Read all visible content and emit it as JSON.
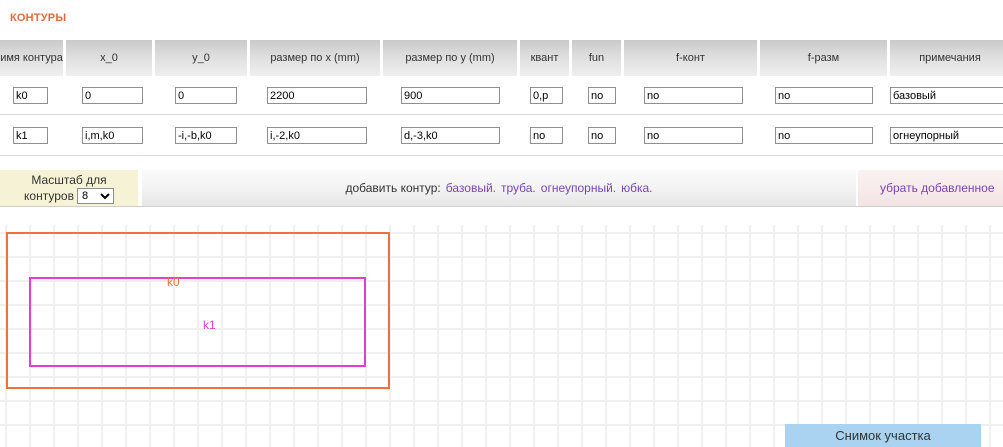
{
  "title": "КОНТУРЫ",
  "table": {
    "headers": [
      "имя контура",
      "x_0",
      "y_0",
      "размер по x (mm)",
      "размер по y (mm)",
      "квант",
      "fun",
      "f-конт",
      "f-разм",
      "примечания"
    ],
    "rows": [
      {
        "values": [
          "k0",
          "0",
          "0",
          "2200",
          "900",
          "0,p",
          "no",
          "no",
          "no",
          "базовый"
        ]
      },
      {
        "values": [
          "k1",
          "i,m,k0",
          "-i,-b,k0",
          "i,-2,k0",
          "d,-3,k0",
          "no",
          "no",
          "no",
          "no",
          "огнеупорный"
        ]
      }
    ]
  },
  "toolbar": {
    "scale_label_line1": "Масштаб для",
    "scale_label_line2": "контуров",
    "scale_value": "8",
    "add_label": "добавить контур:",
    "add_links": [
      "базовый.",
      "труба.",
      "огнеупорный.",
      "юбка."
    ],
    "remove_label": "убрать добавленное"
  },
  "canvas": {
    "contours": [
      {
        "label": "k0"
      },
      {
        "label": "k1"
      }
    ],
    "snapshot_button": "Снимок участка"
  },
  "colors": {
    "title_orange": "#e8693a",
    "contour_k0": "#f2703e",
    "contour_k1": "#e13fd2",
    "link_purple": "#7a44b0",
    "button_blue": "#a9d3f0",
    "scale_cell_yellow": "#f5f2d6",
    "remove_cell_pink": "#f3e4e4"
  }
}
